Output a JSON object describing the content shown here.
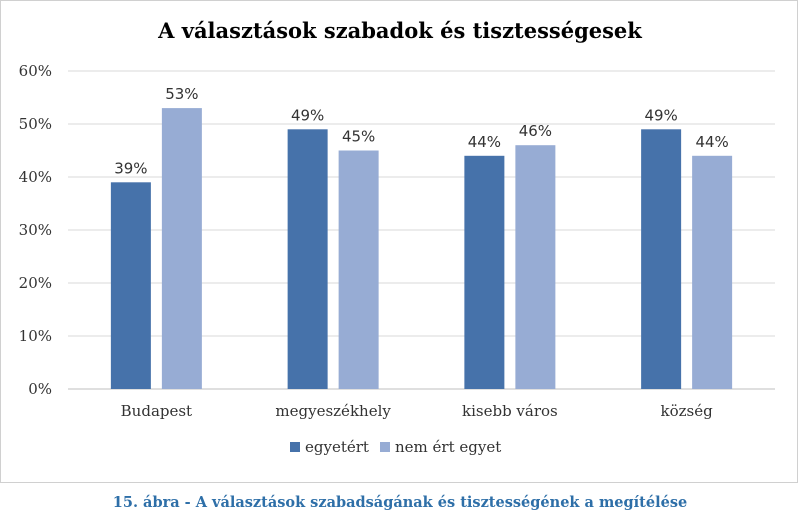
{
  "chart_data": {
    "type": "bar",
    "title": "A választások szabadok és tisztességesek",
    "categories": [
      "Budapest",
      "megyeszékhely",
      "kisebb város",
      "község"
    ],
    "series": [
      {
        "name": "egyetért",
        "values": [
          39,
          49,
          44,
          49
        ],
        "labels": [
          "39%",
          "49%",
          "44%",
          "49%"
        ],
        "color": "#4672aa"
      },
      {
        "name": "nem ért egyet",
        "values": [
          53,
          45,
          46,
          44
        ],
        "labels": [
          "53%",
          "45%",
          "46%",
          "44%"
        ],
        "color": "#97acd4"
      }
    ],
    "ylim": [
      0,
      60
    ],
    "yticks": [
      0,
      10,
      20,
      30,
      40,
      50,
      60
    ],
    "ytick_labels": [
      "0%",
      "10%",
      "20%",
      "30%",
      "40%",
      "50%",
      "60%"
    ],
    "grid": true,
    "legend_position": "bottom"
  },
  "caption": "15. ábra - A választások szabadságának és tisztességének a megítélése"
}
